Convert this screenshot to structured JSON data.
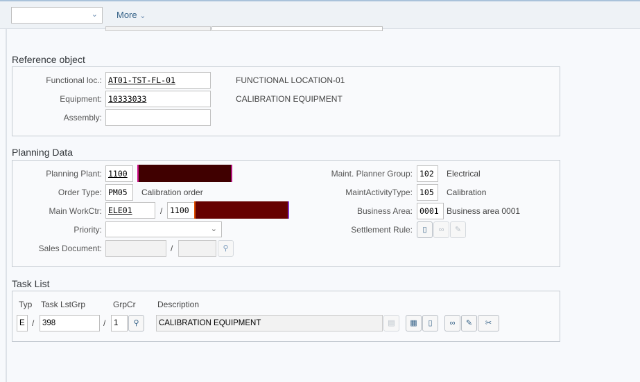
{
  "toolbar": {
    "dropdown_value": "",
    "more_label": "More"
  },
  "reference_object": {
    "title": "Reference object",
    "functional_loc": {
      "label": "Functional loc.:",
      "value": "AT01-TST-FL-01",
      "desc": "FUNCTIONAL LOCATION-01"
    },
    "equipment": {
      "label": "Equipment:",
      "value": "10333033",
      "desc": "CALIBRATION EQUIPMENT"
    },
    "assembly": {
      "label": "Assembly:",
      "value": ""
    }
  },
  "planning_data": {
    "title": "Planning Data",
    "planning_plant": {
      "label": "Planning Plant:",
      "value": "1100"
    },
    "order_type": {
      "label": "Order Type:",
      "value": "PM05",
      "desc": "Calibration order"
    },
    "main_workctr": {
      "label": "Main WorkCtr:",
      "value": "ELE01",
      "sep": "/",
      "plant": "1100"
    },
    "priority": {
      "label": "Priority:",
      "value": ""
    },
    "sales_document": {
      "label": "Sales Document:",
      "value": "",
      "sep": "/",
      "item": ""
    },
    "planner_group": {
      "label": "Maint. Planner Group:",
      "value": "102",
      "desc": "Electrical"
    },
    "activity_type": {
      "label": "MaintActivityType:",
      "value": "105",
      "desc": "Calibration"
    },
    "business_area": {
      "label": "Business Area:",
      "value": "0001",
      "desc": "Business area 0001"
    },
    "settlement_rule": {
      "label": "Settlement Rule:"
    }
  },
  "task_list": {
    "title": "Task List",
    "headers": {
      "typ": "Typ",
      "group": "Task LstGrp",
      "grpcr": "GrpCr",
      "description": "Description"
    },
    "typ": "E",
    "sep": "/",
    "group": "398",
    "grpcr": "1",
    "description": "CALIBRATION EQUIPMENT"
  }
}
